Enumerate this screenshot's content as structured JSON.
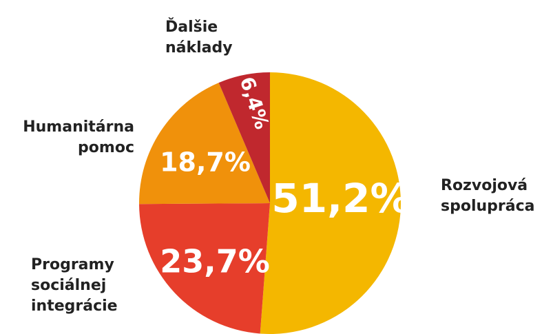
{
  "chart_data": {
    "type": "pie",
    "categories": [
      "Rozvojová spolupráca",
      "Programy sociálnej integrácie",
      "Humanitárna pomoc",
      "Ďalšie náklady"
    ],
    "values": [
      51.2,
      23.7,
      18.7,
      6.4
    ],
    "value_labels": [
      "51,2%",
      "23,7%",
      "18,7%",
      "6,4%"
    ],
    "colors": [
      "#f4b700",
      "#e63e2b",
      "#f0910b",
      "#c0282e"
    ]
  }
}
